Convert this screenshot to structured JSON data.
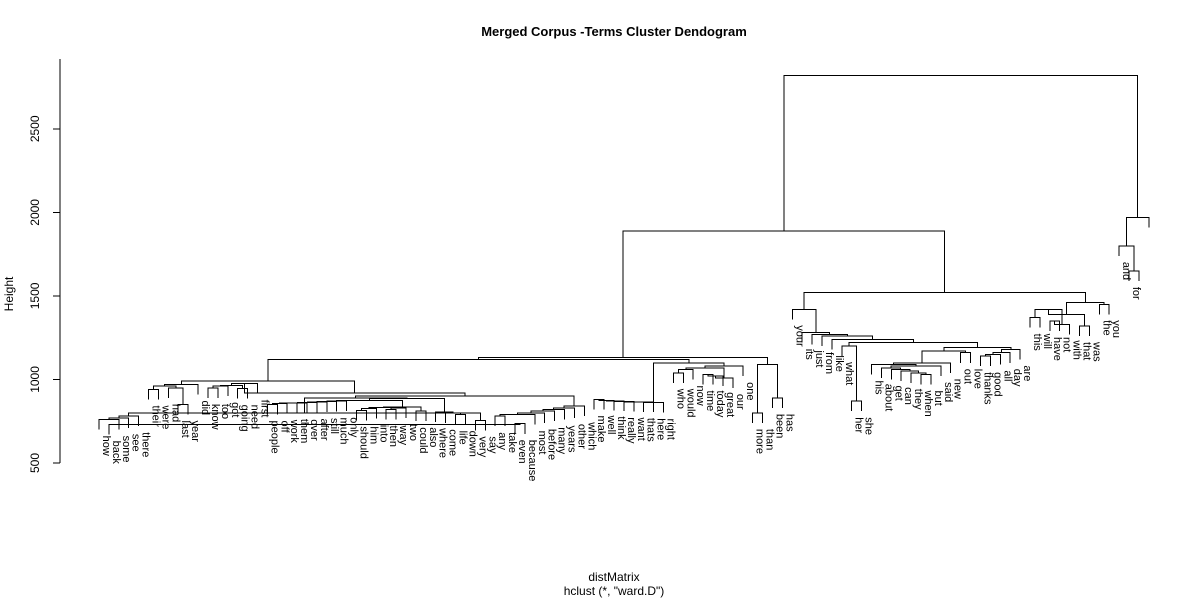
{
  "chart_data": {
    "type": "dendrogram",
    "title": "Merged Corpus -Terms Cluster Dendogram",
    "ylabel": "Height",
    "xlabel": "distMatrix",
    "sublabel": "hclust (*, \"ward.D\")",
    "ylim": [
      500,
      2900
    ],
    "yticks": [
      500,
      1000,
      1500,
      2000,
      2500
    ],
    "ytick_labels": [
      "500",
      "1000",
      "1500",
      "2000",
      "2500"
    ],
    "labels": [
      "how",
      "back",
      "some",
      "see",
      "there",
      "their",
      "were",
      "had",
      "last",
      "year",
      "did",
      "know",
      "too",
      "got",
      "going",
      "need",
      "first",
      "people",
      "off",
      "work",
      "them",
      "over",
      "after",
      "still",
      "much",
      "only",
      "should",
      "him",
      "into",
      "then",
      "way",
      "two",
      "could",
      "also",
      "where",
      "come",
      "life",
      "down",
      "very",
      "say",
      "any",
      "take",
      "even",
      "because",
      "most",
      "before",
      "many",
      "years",
      "other",
      "which",
      "make",
      "well",
      "think",
      "really",
      "want",
      "thats",
      "here",
      "right",
      "who",
      "would",
      "now",
      "time",
      "today",
      "great",
      "our",
      "one",
      "more",
      "than",
      "been",
      "has",
      "your",
      "its",
      "just",
      "from",
      "like",
      "what",
      "her",
      "she",
      "his",
      "about",
      "get",
      "can",
      "they",
      "when",
      "but",
      "said",
      "new",
      "out",
      "love",
      "thanks",
      "good",
      "all",
      "day",
      "are",
      "this",
      "will",
      "have",
      "not",
      "with",
      "that",
      "was",
      "the",
      "you",
      "and",
      "for"
    ],
    "merges": [
      [
        -9,
        -10,
        850
      ],
      [
        -43,
        -44,
        735
      ],
      [
        -2,
        2,
        730
      ],
      [
        -39,
        -40,
        755
      ],
      [
        -1,
        -3,
        760
      ],
      [
        5,
        -4,
        770
      ],
      [
        6,
        -5,
        780
      ],
      [
        7,
        4,
        800
      ],
      [
        -30,
        -31,
        820
      ],
      [
        9,
        -32,
        830
      ],
      [
        -37,
        -38,
        790
      ],
      [
        11,
        -36,
        798
      ],
      [
        12,
        -35,
        805
      ],
      [
        -27,
        -28,
        815
      ],
      [
        14,
        -29,
        825
      ],
      [
        15,
        10,
        832
      ],
      [
        -33,
        -34,
        810
      ],
      [
        16,
        17,
        835
      ],
      [
        -6,
        -7,
        940
      ],
      [
        -8,
        1,
        950
      ],
      [
        19,
        20,
        960
      ],
      [
        21,
        -11,
        970
      ],
      [
        -12,
        -13,
        950
      ],
      [
        23,
        -14,
        960
      ],
      [
        -15,
        -16,
        945
      ],
      [
        24,
        25,
        965
      ],
      [
        26,
        -17,
        975
      ],
      [
        -18,
        -19,
        850
      ],
      [
        28,
        -20,
        855
      ],
      [
        29,
        -21,
        860
      ],
      [
        30,
        -22,
        858
      ],
      [
        31,
        -23,
        862
      ],
      [
        32,
        -24,
        865
      ],
      [
        33,
        -25,
        868
      ],
      [
        34,
        -26,
        870
      ],
      [
        35,
        18,
        875
      ],
      [
        36,
        13,
        885
      ],
      [
        37,
        8,
        890
      ],
      [
        -41,
        -42,
        780
      ],
      [
        39,
        -45,
        790
      ],
      [
        40,
        -46,
        800
      ],
      [
        41,
        -47,
        810
      ],
      [
        42,
        -48,
        820
      ],
      [
        43,
        -49,
        830
      ],
      [
        44,
        -50,
        840
      ],
      [
        38,
        45,
        900
      ],
      [
        27,
        46,
        920
      ],
      [
        22,
        47,
        990
      ],
      [
        -51,
        -52,
        880
      ],
      [
        49,
        -53,
        875
      ],
      [
        50,
        -54,
        870
      ],
      [
        51,
        -55,
        868
      ],
      [
        52,
        -56,
        866
      ],
      [
        53,
        -57,
        864
      ],
      [
        54,
        -58,
        862
      ],
      [
        -59,
        -60,
        1040
      ],
      [
        56,
        -61,
        1060
      ],
      [
        -62,
        -63,
        1030
      ],
      [
        58,
        -64,
        1020
      ],
      [
        59,
        -65,
        1010
      ],
      [
        57,
        60,
        1070
      ],
      [
        61,
        -66,
        1080
      ],
      [
        62,
        55,
        1100
      ],
      [
        63,
        48,
        1120
      ],
      [
        -67,
        -68,
        800
      ],
      [
        -69,
        -70,
        890
      ],
      [
        65,
        66,
        1090
      ],
      [
        64,
        67,
        1130
      ],
      [
        -77,
        -78,
        870
      ],
      [
        -84,
        -85,
        1030
      ],
      [
        70,
        -83,
        1040
      ],
      [
        71,
        -82,
        1050
      ],
      [
        72,
        -81,
        1060
      ],
      [
        73,
        -80,
        1070
      ],
      [
        74,
        -86,
        1080
      ],
      [
        75,
        -79,
        1090
      ],
      [
        76,
        -87,
        1100
      ],
      [
        -88,
        -89,
        1160
      ],
      [
        77,
        78,
        1170
      ],
      [
        -90,
        -91,
        1140
      ],
      [
        80,
        -92,
        1150
      ],
      [
        81,
        -93,
        1160
      ],
      [
        82,
        -94,
        1180
      ],
      [
        79,
        83,
        1190
      ],
      [
        -76,
        69,
        1200
      ],
      [
        85,
        84,
        1220
      ],
      [
        -75,
        86,
        1240
      ],
      [
        -74,
        87,
        1260
      ],
      [
        -73,
        88,
        1270
      ],
      [
        -72,
        89,
        1280
      ],
      [
        -95,
        -96,
        1370
      ],
      [
        -97,
        -98,
        1350
      ],
      [
        92,
        -99,
        1330
      ],
      [
        -100,
        -101,
        1320
      ],
      [
        91,
        93,
        1420
      ],
      [
        94,
        95,
        1390
      ],
      [
        -102,
        -103,
        1450
      ],
      [
        96,
        97,
        1460
      ],
      [
        -71,
        90,
        1420
      ],
      [
        99,
        98,
        1520
      ],
      [
        100,
        68,
        1890
      ],
      [
        -105,
        -106,
        1650
      ],
      [
        -104,
        102,
        1800
      ],
      [
        103,
        -107,
        1970
      ],
      [
        101,
        104,
        2820
      ]
    ]
  }
}
